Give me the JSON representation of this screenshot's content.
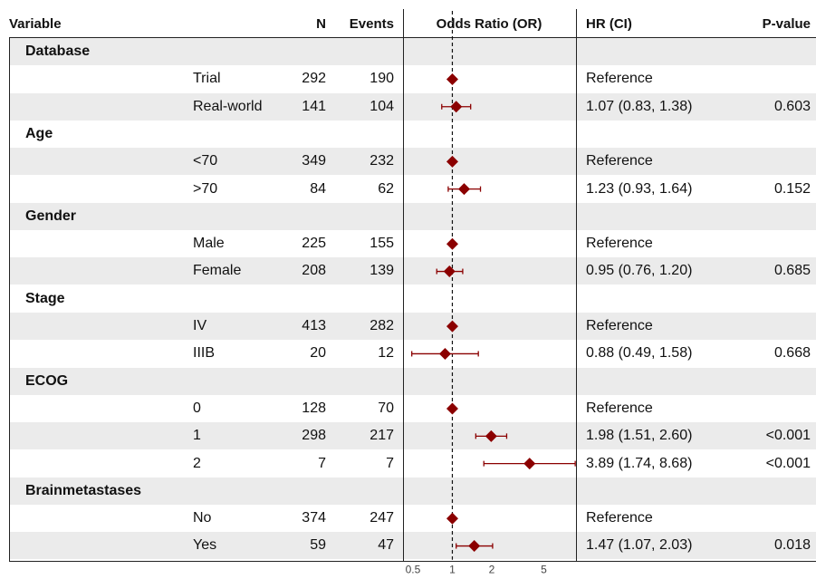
{
  "header": {
    "variable": "Variable",
    "n": "N",
    "events": "Events",
    "or": "Odds Ratio (OR)",
    "hr": "HR (CI)",
    "p": "P-value"
  },
  "colors": {
    "marker": "#8b0000",
    "band": "#ebebeb"
  },
  "chart_data": {
    "type": "forest",
    "x_scale": "log",
    "xlim": [
      0.42,
      8.8
    ],
    "x_ticks": [
      0.5,
      1,
      2,
      5
    ],
    "x_tick_labels": [
      "0.5",
      "1",
      "2",
      "5"
    ],
    "reference_line": 1,
    "rows": [
      {
        "kind": "group",
        "label": "Database"
      },
      {
        "kind": "item",
        "label": "Trial",
        "n": "292",
        "events": "190",
        "est": 1.0,
        "hr_text": "Reference",
        "p": ""
      },
      {
        "kind": "item",
        "label": "Real-world",
        "n": "141",
        "events": "104",
        "est": 1.07,
        "lo": 0.83,
        "hi": 1.38,
        "hr_text": "1.07 (0.83, 1.38)",
        "p": "0.603"
      },
      {
        "kind": "group",
        "label": "Age"
      },
      {
        "kind": "item",
        "label": "<70",
        "n": "349",
        "events": "232",
        "est": 1.0,
        "hr_text": "Reference",
        "p": ""
      },
      {
        "kind": "item",
        "label": ">70",
        "n": "84",
        "events": "62",
        "est": 1.23,
        "lo": 0.93,
        "hi": 1.64,
        "hr_text": "1.23 (0.93, 1.64)",
        "p": "0.152"
      },
      {
        "kind": "group",
        "label": "Gender"
      },
      {
        "kind": "item",
        "label": "Male",
        "n": "225",
        "events": "155",
        "est": 1.0,
        "hr_text": "Reference",
        "p": ""
      },
      {
        "kind": "item",
        "label": "Female",
        "n": "208",
        "events": "139",
        "est": 0.95,
        "lo": 0.76,
        "hi": 1.2,
        "hr_text": "0.95 (0.76, 1.20)",
        "p": "0.685"
      },
      {
        "kind": "group",
        "label": "Stage"
      },
      {
        "kind": "item",
        "label": "IV",
        "n": "413",
        "events": "282",
        "est": 1.0,
        "hr_text": "Reference",
        "p": ""
      },
      {
        "kind": "item",
        "label": "IIIB",
        "n": "20",
        "events": "12",
        "est": 0.88,
        "lo": 0.49,
        "hi": 1.58,
        "hr_text": "0.88 (0.49, 1.58)",
        "p": "0.668"
      },
      {
        "kind": "group",
        "label": "ECOG"
      },
      {
        "kind": "item",
        "label": "0",
        "n": "128",
        "events": "70",
        "est": 1.0,
        "hr_text": "Reference",
        "p": ""
      },
      {
        "kind": "item",
        "label": "1",
        "n": "298",
        "events": "217",
        "est": 1.98,
        "lo": 1.51,
        "hi": 2.6,
        "hr_text": "1.98 (1.51, 2.60)",
        "p": "<0.001"
      },
      {
        "kind": "item",
        "label": "2",
        "n": "7",
        "events": "7",
        "est": 3.89,
        "lo": 1.74,
        "hi": 8.68,
        "hr_text": "3.89 (1.74, 8.68)",
        "p": "<0.001"
      },
      {
        "kind": "group",
        "label": "Brainmetastases"
      },
      {
        "kind": "item",
        "label": "No",
        "n": "374",
        "events": "247",
        "est": 1.0,
        "hr_text": "Reference",
        "p": ""
      },
      {
        "kind": "item",
        "label": "Yes",
        "n": "59",
        "events": "47",
        "est": 1.47,
        "lo": 1.07,
        "hi": 2.03,
        "hr_text": "1.47 (1.07, 2.03)",
        "p": "0.018"
      }
    ]
  }
}
